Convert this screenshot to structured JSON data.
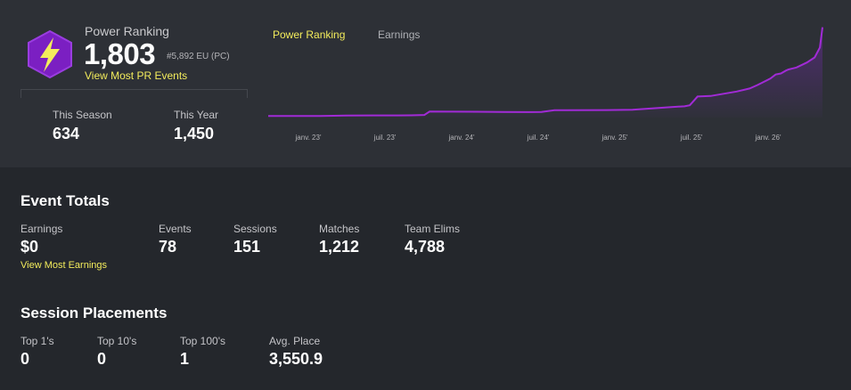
{
  "power_ranking": {
    "label": "Power Ranking",
    "value": "1,803",
    "rank_text": "#5,892 EU (PC)",
    "link": "View Most PR Events",
    "this_season_label": "This Season",
    "this_season_value": "634",
    "this_year_label": "This Year",
    "this_year_value": "1,450"
  },
  "tabs": [
    {
      "label": "Power Ranking",
      "active": true
    },
    {
      "label": "Earnings",
      "active": false
    }
  ],
  "colors": {
    "accent": "#f3ec5c",
    "line": "#a12bd6",
    "badge": "#7b1fc2"
  },
  "chart_data": {
    "type": "area",
    "x_ticks": [
      "janv. 23'",
      "juil. 23'",
      "janv. 24'",
      "juil. 24'",
      "janv. 25'",
      "juil. 25'",
      "janv. 26'"
    ],
    "x": [
      0,
      0.16,
      0.2,
      0.3,
      0.4,
      0.5,
      0.55,
      0.6,
      0.62,
      0.7,
      0.8,
      0.9,
      1.0,
      1.05,
      1.1,
      1.3,
      1.4,
      1.5,
      1.55,
      1.6,
      1.62,
      1.65,
      1.7,
      1.8,
      1.85,
      1.88,
      1.9,
      1.93,
      1.95,
      1.97,
      1.99,
      2.0,
      2.03,
      2.07,
      2.1,
      2.12,
      2.13
    ],
    "y": [
      30,
      30,
      32,
      41,
      42,
      43,
      45,
      52,
      120,
      118,
      116,
      110,
      108,
      112,
      145,
      150,
      155,
      190,
      210,
      225,
      245,
      420,
      430,
      520,
      580,
      650,
      700,
      780,
      860,
      880,
      940,
      960,
      1000,
      1100,
      1200,
      1400,
      1803
    ],
    "ylim": [
      0,
      1850
    ]
  },
  "event_totals": {
    "title": "Event Totals",
    "earnings_label": "Earnings",
    "earnings_value": "$0",
    "earnings_link": "View Most Earnings",
    "events_label": "Events",
    "events_value": "78",
    "sessions_label": "Sessions",
    "sessions_value": "151",
    "matches_label": "Matches",
    "matches_value": "1,212",
    "elims_label": "Team Elims",
    "elims_value": "4,788"
  },
  "session_placements": {
    "title": "Session Placements",
    "top1_label": "Top 1's",
    "top1_value": "0",
    "top10_label": "Top 10's",
    "top10_value": "0",
    "top100_label": "Top 100's",
    "top100_value": "1",
    "avg_label": "Avg. Place",
    "avg_value": "3,550.9"
  }
}
